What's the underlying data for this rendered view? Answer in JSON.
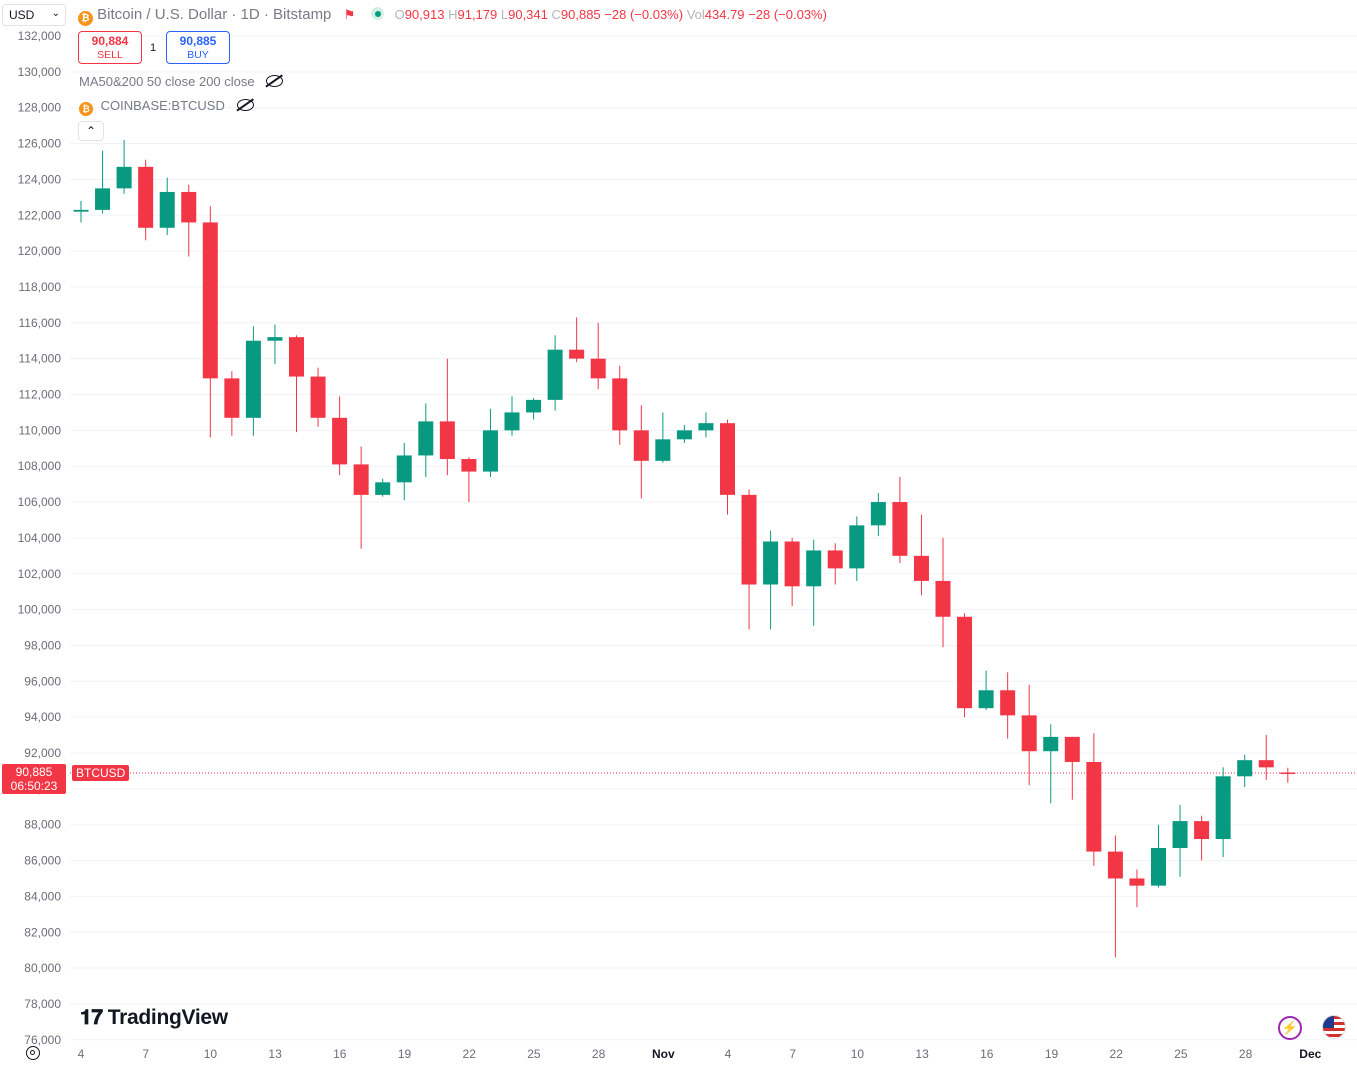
{
  "currency_selector": {
    "value": "USD"
  },
  "legend": {
    "symbol_title": "Bitcoin / U.S. Dollar · 1D · Bitstamp",
    "o_label": "O",
    "o_value": "90,913",
    "h_label": "H",
    "h_value": "91,179",
    "l_label": "L",
    "l_value": "90,341",
    "c_label": "C",
    "c_value": "90,885",
    "change": "−28 (−0.03%)",
    "vol_label": "Vol",
    "vol_value": "434.79",
    "vol_change": "−28 (−0.03%)"
  },
  "trade": {
    "sell_price": "90,884",
    "sell_label": "SELL",
    "spread": "1",
    "buy_price": "90,885",
    "buy_label": "BUY"
  },
  "indicators": [
    {
      "label": "MA50&200 50 close 200 close"
    },
    {
      "label": "COINBASE:BTCUSD"
    }
  ],
  "collapse_icon": "chevron-up",
  "last_price": {
    "value": "90,885",
    "countdown": "06:50:23",
    "symbol": "BTCUSD"
  },
  "branding": {
    "name": "TradingView"
  },
  "colors": {
    "up": "#089981",
    "down": "#f23645",
    "grid": "#f0f3fa",
    "text": "#131722",
    "axis_text": "#6a6d78"
  },
  "chart_data": {
    "type": "candlestick",
    "y_axis_ticks": [
      "132,000",
      "130,000",
      "128,000",
      "126,000",
      "124,000",
      "122,000",
      "120,000",
      "118,000",
      "116,000",
      "114,000",
      "112,000",
      "110,000",
      "108,000",
      "106,000",
      "104,000",
      "102,000",
      "100,000",
      "98,000",
      "96,000",
      "94,000",
      "92,000",
      "90,000",
      "88,000",
      "86,000",
      "84,000",
      "82,000",
      "80,000",
      "78,000",
      "76,000"
    ],
    "ylim": [
      76000,
      132000
    ],
    "x_axis_ticks": [
      {
        "label": "4",
        "bold": false
      },
      {
        "label": "7",
        "bold": false
      },
      {
        "label": "10",
        "bold": false
      },
      {
        "label": "13",
        "bold": false
      },
      {
        "label": "16",
        "bold": false
      },
      {
        "label": "19",
        "bold": false
      },
      {
        "label": "22",
        "bold": false
      },
      {
        "label": "25",
        "bold": false
      },
      {
        "label": "28",
        "bold": false
      },
      {
        "label": "Nov",
        "bold": true
      },
      {
        "label": "4",
        "bold": false
      },
      {
        "label": "7",
        "bold": false
      },
      {
        "label": "10",
        "bold": false
      },
      {
        "label": "13",
        "bold": false
      },
      {
        "label": "16",
        "bold": false
      },
      {
        "label": "19",
        "bold": false
      },
      {
        "label": "22",
        "bold": false
      },
      {
        "label": "25",
        "bold": false
      },
      {
        "label": "28",
        "bold": false
      },
      {
        "label": "Dec",
        "bold": true
      }
    ],
    "candles": [
      {
        "o": 122200,
        "h": 122800,
        "l": 121600,
        "c": 122300
      },
      {
        "o": 122300,
        "h": 125600,
        "l": 122100,
        "c": 123500
      },
      {
        "o": 123500,
        "h": 126200,
        "l": 123200,
        "c": 124700
      },
      {
        "o": 124700,
        "h": 125100,
        "l": 120600,
        "c": 121300
      },
      {
        "o": 121300,
        "h": 124100,
        "l": 120900,
        "c": 123300
      },
      {
        "o": 123300,
        "h": 123700,
        "l": 119700,
        "c": 121600
      },
      {
        "o": 121600,
        "h": 122500,
        "l": 109600,
        "c": 112900
      },
      {
        "o": 112900,
        "h": 113300,
        "l": 109700,
        "c": 110700
      },
      {
        "o": 110700,
        "h": 115800,
        "l": 109700,
        "c": 115000
      },
      {
        "o": 115000,
        "h": 115900,
        "l": 113700,
        "c": 115200
      },
      {
        "o": 115200,
        "h": 115300,
        "l": 109900,
        "c": 113000
      },
      {
        "o": 113000,
        "h": 113500,
        "l": 110200,
        "c": 110700
      },
      {
        "o": 110700,
        "h": 111900,
        "l": 107500,
        "c": 108100
      },
      {
        "o": 108100,
        "h": 109100,
        "l": 103400,
        "c": 106400
      },
      {
        "o": 106400,
        "h": 107300,
        "l": 106300,
        "c": 107100
      },
      {
        "o": 107100,
        "h": 109300,
        "l": 106100,
        "c": 108600
      },
      {
        "o": 108600,
        "h": 111500,
        "l": 107400,
        "c": 110500
      },
      {
        "o": 110500,
        "h": 114000,
        "l": 107500,
        "c": 108400
      },
      {
        "o": 108400,
        "h": 108500,
        "l": 106000,
        "c": 107700
      },
      {
        "o": 107700,
        "h": 111200,
        "l": 107400,
        "c": 110000
      },
      {
        "o": 110000,
        "h": 111900,
        "l": 109700,
        "c": 111000
      },
      {
        "o": 111000,
        "h": 111800,
        "l": 110600,
        "c": 111700
      },
      {
        "o": 111700,
        "h": 115300,
        "l": 111100,
        "c": 114500
      },
      {
        "o": 114500,
        "h": 116300,
        "l": 113800,
        "c": 114000
      },
      {
        "o": 114000,
        "h": 116000,
        "l": 112300,
        "c": 112900
      },
      {
        "o": 112900,
        "h": 113600,
        "l": 109200,
        "c": 110000
      },
      {
        "o": 110000,
        "h": 111400,
        "l": 106200,
        "c": 108300
      },
      {
        "o": 108300,
        "h": 111000,
        "l": 108200,
        "c": 109500
      },
      {
        "o": 109500,
        "h": 110300,
        "l": 109300,
        "c": 110000
      },
      {
        "o": 110000,
        "h": 111000,
        "l": 109600,
        "c": 110400
      },
      {
        "o": 110400,
        "h": 110600,
        "l": 105300,
        "c": 106400
      },
      {
        "o": 106400,
        "h": 106700,
        "l": 98900,
        "c": 101400
      },
      {
        "o": 101400,
        "h": 104400,
        "l": 98900,
        "c": 103800
      },
      {
        "o": 103800,
        "h": 104000,
        "l": 100200,
        "c": 101300
      },
      {
        "o": 101300,
        "h": 103900,
        "l": 99100,
        "c": 103300
      },
      {
        "o": 103300,
        "h": 103700,
        "l": 101400,
        "c": 102300
      },
      {
        "o": 102300,
        "h": 105200,
        "l": 101600,
        "c": 104700
      },
      {
        "o": 104700,
        "h": 106500,
        "l": 104100,
        "c": 106000
      },
      {
        "o": 106000,
        "h": 107400,
        "l": 102600,
        "c": 103000
      },
      {
        "o": 103000,
        "h": 105300,
        "l": 100800,
        "c": 101600
      },
      {
        "o": 101600,
        "h": 104000,
        "l": 97900,
        "c": 99600
      },
      {
        "o": 99600,
        "h": 99800,
        "l": 94000,
        "c": 94500
      },
      {
        "o": 94500,
        "h": 96600,
        "l": 94400,
        "c": 95500
      },
      {
        "o": 95500,
        "h": 96500,
        "l": 92800,
        "c": 94100
      },
      {
        "o": 94100,
        "h": 95800,
        "l": 90200,
        "c": 92100
      },
      {
        "o": 92100,
        "h": 93600,
        "l": 89200,
        "c": 92900
      },
      {
        "o": 92900,
        "h": 92900,
        "l": 89400,
        "c": 91500
      },
      {
        "o": 91500,
        "h": 93100,
        "l": 85700,
        "c": 86500
      },
      {
        "o": 86500,
        "h": 87400,
        "l": 80600,
        "c": 85000
      },
      {
        "o": 85000,
        "h": 85500,
        "l": 83400,
        "c": 84600
      },
      {
        "o": 84600,
        "h": 88000,
        "l": 84500,
        "c": 86700
      },
      {
        "o": 86700,
        "h": 89100,
        "l": 85100,
        "c": 88200
      },
      {
        "o": 88200,
        "h": 88500,
        "l": 86000,
        "c": 87200
      },
      {
        "o": 87200,
        "h": 91200,
        "l": 86200,
        "c": 90700
      },
      {
        "o": 90700,
        "h": 91900,
        "l": 90100,
        "c": 91600
      },
      {
        "o": 91600,
        "h": 93000,
        "l": 90500,
        "c": 91200
      },
      {
        "o": 90913,
        "h": 91179,
        "l": 90341,
        "c": 90885
      }
    ]
  }
}
